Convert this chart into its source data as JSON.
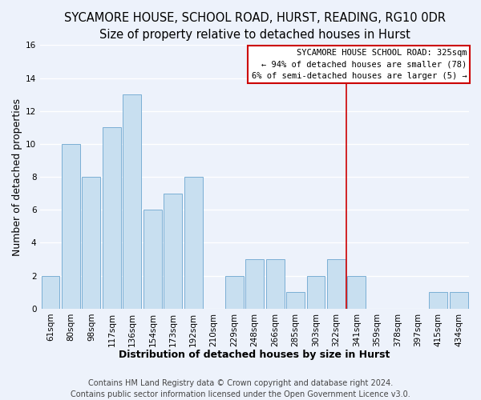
{
  "title": "SYCAMORE HOUSE, SCHOOL ROAD, HURST, READING, RG10 0DR",
  "subtitle": "Size of property relative to detached houses in Hurst",
  "xlabel": "Distribution of detached houses by size in Hurst",
  "ylabel": "Number of detached properties",
  "bar_labels": [
    "61sqm",
    "80sqm",
    "98sqm",
    "117sqm",
    "136sqm",
    "154sqm",
    "173sqm",
    "192sqm",
    "210sqm",
    "229sqm",
    "248sqm",
    "266sqm",
    "285sqm",
    "303sqm",
    "322sqm",
    "341sqm",
    "359sqm",
    "378sqm",
    "397sqm",
    "415sqm",
    "434sqm"
  ],
  "bar_values": [
    2,
    10,
    8,
    11,
    13,
    6,
    7,
    8,
    0,
    2,
    3,
    3,
    1,
    2,
    3,
    2,
    0,
    0,
    0,
    1,
    1
  ],
  "bar_color": "#c8dff0",
  "bar_edge_color": "#7bafd4",
  "vline_x": 14.5,
  "vline_color": "#cc0000",
  "ylim": [
    0,
    16
  ],
  "yticks": [
    0,
    2,
    4,
    6,
    8,
    10,
    12,
    14,
    16
  ],
  "annotation_title": "SYCAMORE HOUSE SCHOOL ROAD: 325sqm",
  "annotation_line1": "← 94% of detached houses are smaller (78)",
  "annotation_line2": "6% of semi-detached houses are larger (5) →",
  "annotation_box_color": "#ffffff",
  "annotation_border_color": "#cc0000",
  "footer_line1": "Contains HM Land Registry data © Crown copyright and database right 2024.",
  "footer_line2": "Contains public sector information licensed under the Open Government Licence v3.0.",
  "bg_color": "#edf2fb",
  "grid_color": "#ffffff",
  "title_fontsize": 10.5,
  "subtitle_fontsize": 9.5,
  "axis_label_fontsize": 9,
  "tick_fontsize": 7.5,
  "footer_fontsize": 7
}
